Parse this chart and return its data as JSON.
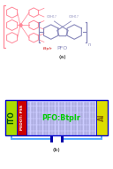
{
  "title_a": "(a)",
  "title_b": "(b)",
  "bg_color": "#ffffff",
  "ito_color": "#aadd00",
  "ito_label": "ITO",
  "ito_label_color": "#005500",
  "pedot_color": "#cc0000",
  "pedot_label": "PEDOT: PSS",
  "pedot_label_color": "#ffffff",
  "active_color_face": "#ccccff",
  "active_dot_color": "#aaaadd",
  "active_label": "PFO:BtpIr",
  "active_label_color": "#00cc00",
  "al_color": "#dddd00",
  "al_label": "Al",
  "al_label_color": "#886600",
  "border_color": "#0000cc",
  "wire_color": "#55aaff",
  "cap_color": "#0000aa",
  "pfo_label": "PFO",
  "btpir_label": "BtpIr",
  "btpir_label_color": "#cc0000",
  "pink": "#ff8899",
  "blue": "#8888bb"
}
